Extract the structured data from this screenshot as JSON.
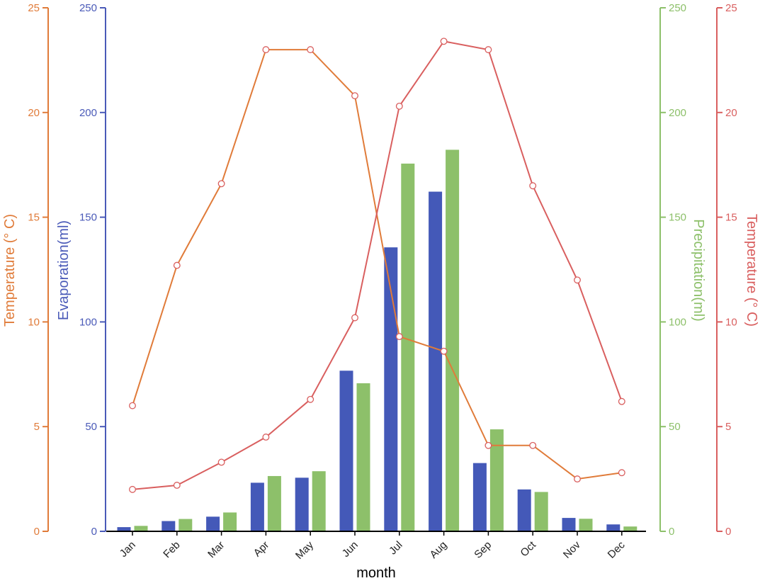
{
  "chart_data": {
    "type": "bar",
    "xlabel": "month",
    "categories": [
      "Jan",
      "Feb",
      "Mar",
      "Apr",
      "May",
      "Jun",
      "Jul",
      "Aug",
      "Sep",
      "Oct",
      "Nov",
      "Dec"
    ],
    "axes": {
      "left_outer": {
        "label": "Temperature (° C)",
        "ylim": [
          0,
          25
        ],
        "ticks": [
          0,
          5,
          10,
          15,
          20,
          25
        ],
        "color": "#E07B39"
      },
      "left_inner": {
        "label": "Evaporation(ml)",
        "ylim": [
          0,
          250
        ],
        "ticks": [
          0,
          50,
          100,
          150,
          200,
          250
        ],
        "color": "#4A5AB8"
      },
      "right_inner": {
        "label": "Precipitation(ml)",
        "ylim": [
          0,
          250
        ],
        "ticks": [
          0,
          50,
          100,
          150,
          200,
          250
        ],
        "color": "#8DC06A"
      },
      "right_outer": {
        "label": "Temperature (° C)",
        "ylim": [
          0,
          25
        ],
        "ticks": [
          0,
          5,
          10,
          15,
          20,
          25
        ],
        "color": "#D95F5F"
      }
    },
    "series": [
      {
        "kind": "bar",
        "axis": "left_inner",
        "color": "#4459B8",
        "values": [
          2.0,
          4.9,
          7.0,
          23.2,
          25.6,
          76.7,
          135.6,
          162.2,
          32.6,
          20.0,
          6.4,
          3.3
        ]
      },
      {
        "kind": "bar",
        "axis": "right_inner",
        "color": "#8DC06A",
        "values": [
          2.6,
          5.9,
          9.0,
          26.4,
          28.7,
          70.7,
          175.6,
          182.2,
          48.7,
          18.8,
          6.0,
          2.3
        ]
      },
      {
        "kind": "line",
        "axis": "left_outer",
        "color": "#E07B39",
        "values": [
          6.0,
          12.7,
          16.6,
          23.0,
          23.0,
          20.8,
          9.3,
          8.6,
          4.1,
          4.1,
          2.5,
          2.8
        ]
      },
      {
        "kind": "line",
        "axis": "right_outer",
        "color": "#D95F5F",
        "values": [
          2.0,
          2.2,
          3.3,
          4.5,
          6.3,
          10.2,
          20.3,
          23.4,
          23.0,
          16.5,
          12.0,
          6.2
        ]
      }
    ],
    "grid": false,
    "legend": "none"
  }
}
